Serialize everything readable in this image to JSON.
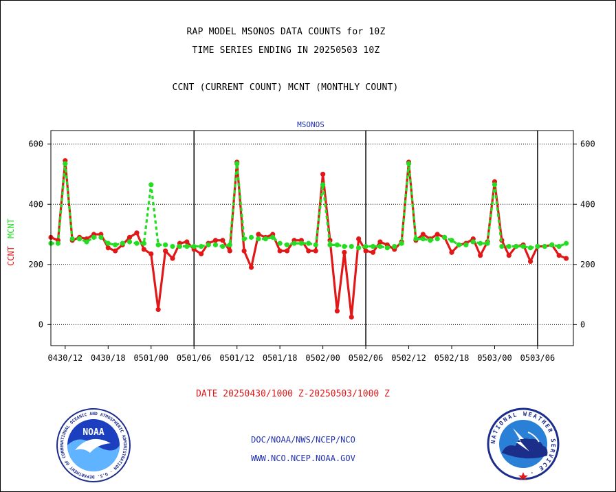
{
  "titles": {
    "line1": "RAP MODEL MSONOS DATA COUNTS for 10Z",
    "line2": "TIME SERIES ENDING IN 20250503 10Z",
    "line3": "CCNT (CURRENT COUNT) MCNT (MONTHLY COUNT)"
  },
  "chart_data": {
    "type": "line",
    "title": "MSONOS",
    "ylabel_ccnt": "CCNT",
    "ylabel_mcnt": "MCNT",
    "xlabel": "DATE 20250430/1000 Z-20250503/1000 Z",
    "ylim": [
      -70,
      645
    ],
    "yticks": [
      0,
      200,
      400,
      600
    ],
    "xlim": [
      0,
      73
    ],
    "xticks": [
      {
        "t": 2,
        "label": "0430/12"
      },
      {
        "t": 8,
        "label": "0430/18"
      },
      {
        "t": 14,
        "label": "0501/00"
      },
      {
        "t": 20,
        "label": "0501/06"
      },
      {
        "t": 26,
        "label": "0501/12"
      },
      {
        "t": 32,
        "label": "0501/18"
      },
      {
        "t": 38,
        "label": "0502/00"
      },
      {
        "t": 44,
        "label": "0502/06"
      },
      {
        "t": 50,
        "label": "0502/12"
      },
      {
        "t": 56,
        "label": "0502/18"
      },
      {
        "t": 62,
        "label": "0503/00"
      },
      {
        "t": 68,
        "label": "0503/06"
      }
    ],
    "day_lines": [
      20,
      44,
      68
    ],
    "grid": true,
    "colors": {
      "ccnt": "#e01818",
      "mcnt": "#22dd22",
      "title": "#1f2fb0"
    },
    "series": [
      {
        "name": "CCNT",
        "values": [
          290,
          280,
          545,
          280,
          290,
          285,
          300,
          300,
          255,
          245,
          265,
          290,
          305,
          250,
          235,
          50,
          245,
          220,
          270,
          275,
          250,
          235,
          270,
          280,
          280,
          245,
          540,
          245,
          190,
          300,
          290,
          300,
          245,
          245,
          280,
          280,
          245,
          245,
          500,
          280,
          45,
          240,
          25,
          285,
          245,
          240,
          275,
          265,
          250,
          275,
          540,
          280,
          300,
          285,
          300,
          290,
          240,
          265,
          270,
          285,
          230,
          275,
          475,
          280,
          230,
          260,
          265,
          210,
          260,
          260,
          265,
          230,
          220
        ]
      },
      {
        "name": "MCNT",
        "values": [
          270,
          270,
          535,
          285,
          285,
          275,
          290,
          290,
          270,
          265,
          270,
          275,
          270,
          270,
          465,
          265,
          265,
          260,
          260,
          260,
          260,
          260,
          265,
          265,
          260,
          265,
          535,
          285,
          290,
          285,
          285,
          290,
          270,
          265,
          270,
          270,
          270,
          265,
          465,
          265,
          265,
          260,
          260,
          255,
          260,
          260,
          260,
          255,
          260,
          270,
          535,
          285,
          285,
          280,
          285,
          290,
          280,
          265,
          265,
          275,
          270,
          270,
          465,
          260,
          260,
          260,
          260,
          255,
          260,
          260,
          265,
          260,
          270
        ]
      }
    ]
  },
  "footer": {
    "org_line": "DOC/NOAA/NWS/NCEP/NCO",
    "web_line": "WWW.NCO.NCEP.NOAA.GOV",
    "noaa_logo_text": "NOAA",
    "noaa_ring_text": "NATIONAL OCEANIC AND ATMOSPHERIC ADMINISTRATION · U.S. DEPARTMENT OF COMMERCE ·",
    "nws_ring_text": "NATIONAL WEATHER SERVICE ·"
  }
}
